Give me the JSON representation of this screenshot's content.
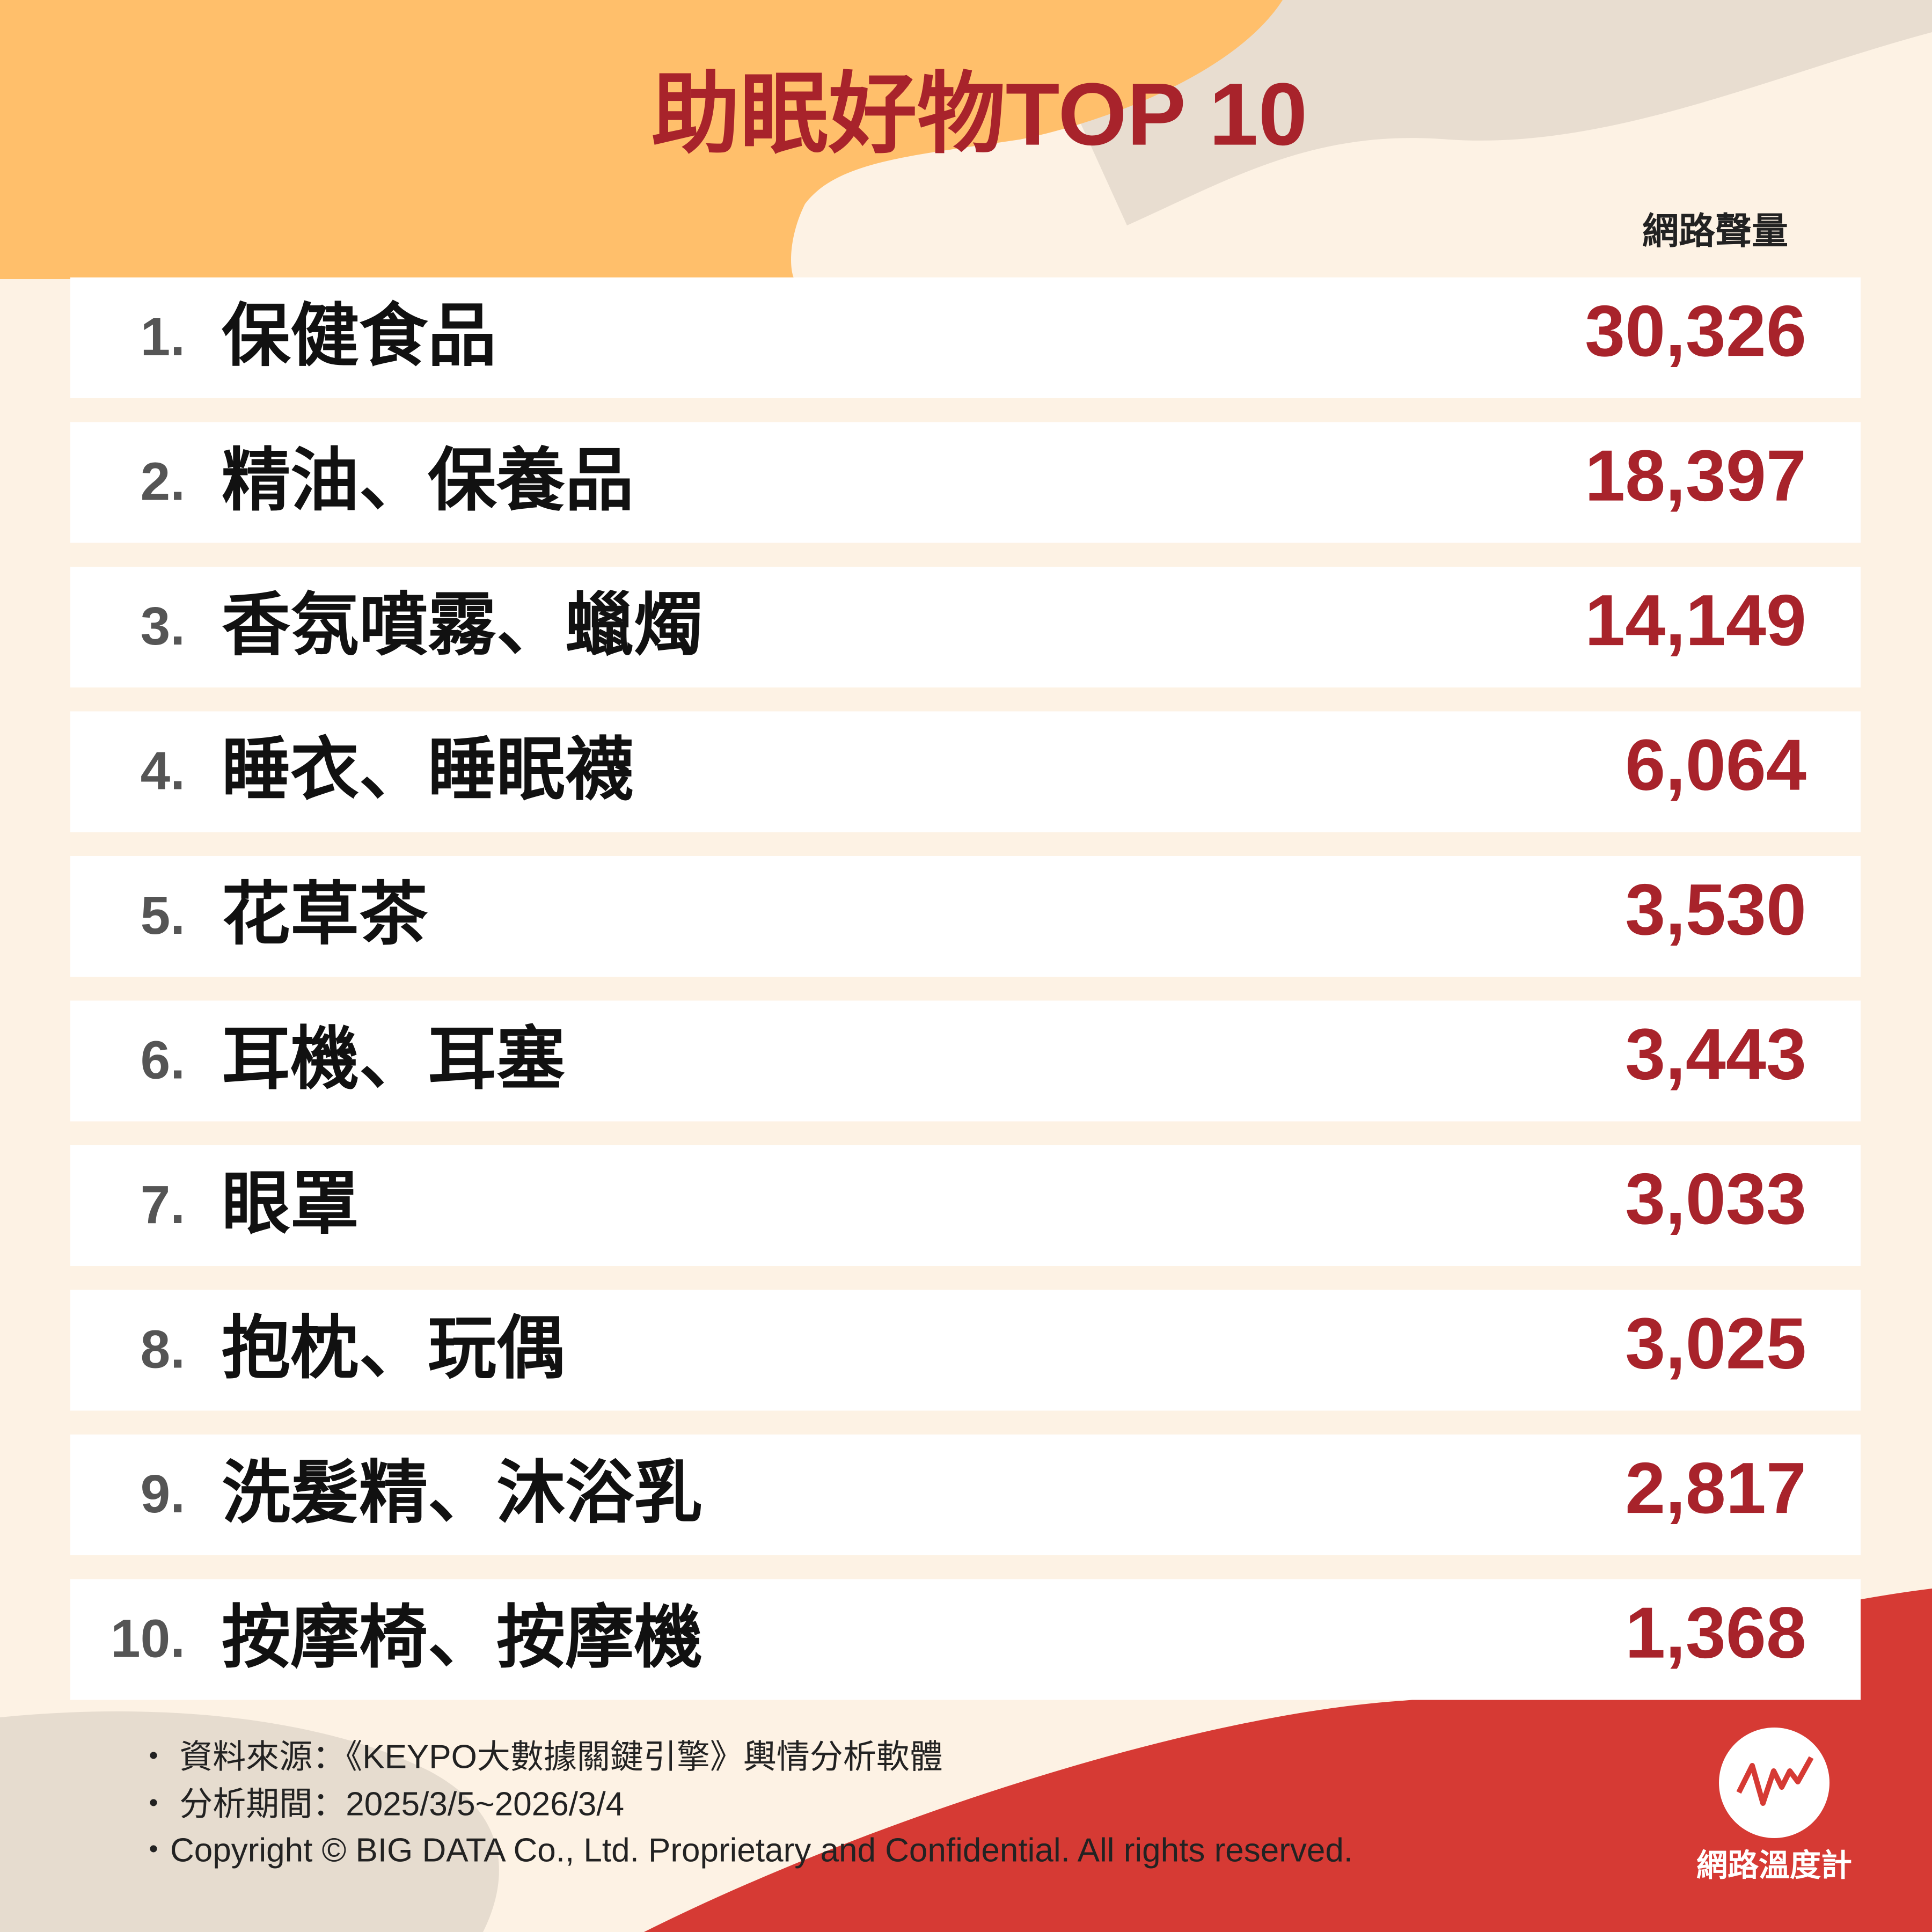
{
  "header": {
    "title": "助眠好物TOP 10",
    "column_label": "網路聲量"
  },
  "table": {
    "rows": [
      [
        "1.",
        "保健食品",
        "30,326"
      ],
      [
        "2.",
        "精油、保養品",
        "18,397"
      ],
      [
        "3.",
        "香氛噴霧、蠟燭",
        "14,149"
      ],
      [
        "4.",
        "睡衣、睡眠襪",
        "6,064"
      ],
      [
        "5.",
        "花草茶",
        "3,530"
      ],
      [
        "6.",
        "耳機、耳塞",
        "3,443"
      ],
      [
        "7.",
        "眼罩",
        "3,033"
      ],
      [
        "8.",
        "抱枕、玩偶",
        "3,025"
      ],
      [
        "9.",
        "洗髮精、沐浴乳",
        "2,817"
      ],
      [
        "10.",
        "按摩椅、按摩機",
        "1,368"
      ]
    ]
  },
  "footer": {
    "notes": [
      "・ 資料來源：《KEYPO大數據關鍵引擎》輿情分析軟體",
      "・ 分析期間：2025/3/5~2026/3/4",
      "・Copyright © BIG DATA Co., Ltd. Proprietary and Confidential. All rights reserved."
    ],
    "logo": "網路溫度計"
  }
}
